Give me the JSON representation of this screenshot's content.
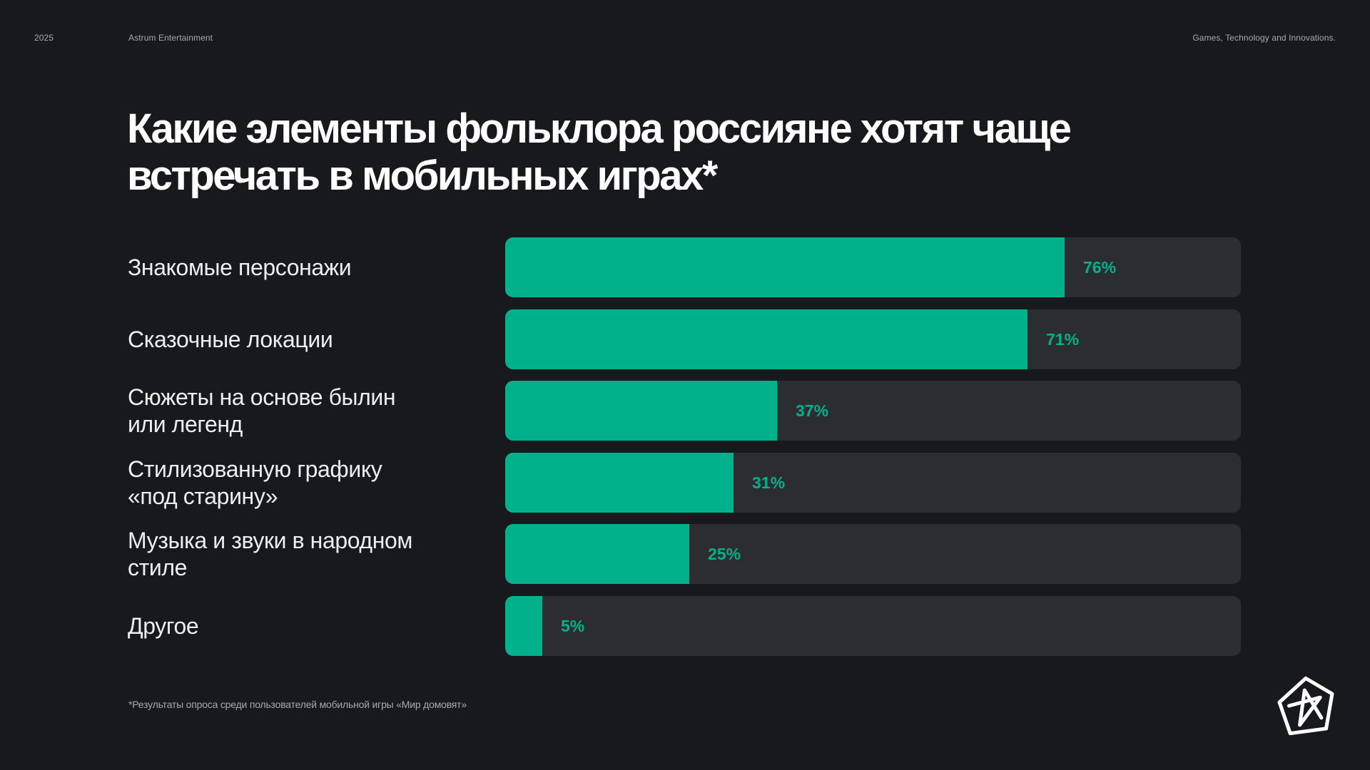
{
  "header": {
    "year": "2025",
    "company": "Astrum Entertainment",
    "tagline": "Games, Technology and Innovations."
  },
  "title": {
    "line1": "Какие элементы фольклора россияне хотят чаще",
    "line2": "встречать в мобильных играх*"
  },
  "footnote": "*Результаты опроса среди пользователей мобильной игры «Мир домовят»",
  "colors": {
    "background": "#18191d",
    "bar_fill": "#00b18c",
    "bar_track": "#2c2d31",
    "value_text": "#00b18c"
  },
  "logo": {
    "icon": "astrum-star-logo-icon"
  },
  "chart_data": {
    "type": "bar",
    "orientation": "horizontal",
    "title": "Какие элементы фольклора россияне хотят чаще встречать в мобильных играх*",
    "xlabel": "",
    "ylabel": "",
    "xlim": [
      0,
      100
    ],
    "unit": "%",
    "categories": [
      [
        "Знакомые персонажи"
      ],
      [
        "Сказочные локации"
      ],
      [
        "Сюжеты на основе былин",
        "или легенд"
      ],
      [
        "Стилизованную графику",
        "«под старину»"
      ],
      [
        "Музыка и звуки в народном",
        "стиле"
      ],
      [
        "Другое"
      ]
    ],
    "values": [
      76,
      71,
      37,
      31,
      25,
      5
    ],
    "value_labels": [
      "76%",
      "71%",
      "37%",
      "31%",
      "25%",
      "5%"
    ]
  }
}
